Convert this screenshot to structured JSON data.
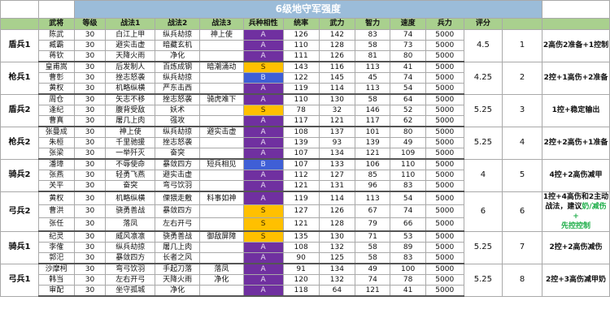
{
  "title": "6级地守军强度",
  "headers": [
    "武将",
    "等级",
    "战法1",
    "战法2",
    "战法3",
    "兵种相性",
    "统率",
    "武力",
    "智力",
    "速度",
    "兵力",
    "评分"
  ],
  "groups": [
    {
      "troop": "盾兵1",
      "score": "4.5",
      "rank": "1",
      "summary": "2高伤2准备+1控制",
      "rows": [
        {
          "name": "陈武",
          "lvl": "30",
          "t1": "白江上甲",
          "t2": "纵兵劫掠",
          "t3": "神上使",
          "aff": "A",
          "cmd": "126",
          "str": "142",
          "int": "83",
          "spd": "74",
          "troops": "5000"
        },
        {
          "name": "臧霸",
          "lvl": "30",
          "t1": "避实击虚",
          "t2": "暗藏玄机",
          "t3": "",
          "aff": "A",
          "cmd": "110",
          "str": "128",
          "int": "58",
          "spd": "73",
          "troops": "5000"
        },
        {
          "name": "蒋钦",
          "lvl": "30",
          "t1": "天降火雨",
          "t2": "净化",
          "t3": "",
          "aff": "A",
          "cmd": "111",
          "str": "126",
          "int": "81",
          "spd": "80",
          "troops": "5000"
        }
      ]
    },
    {
      "troop": "枪兵1",
      "score": "4.25",
      "rank": "2",
      "summary": "2控+1高伤+2准备",
      "rows": [
        {
          "name": "皇甫嵩",
          "lvl": "30",
          "t1": "后发制人",
          "t2": "百炼成钢",
          "t3": "暗潮涌动",
          "aff": "S",
          "cmd": "143",
          "str": "116",
          "int": "113",
          "spd": "41",
          "troops": "5000"
        },
        {
          "name": "曹彰",
          "lvl": "30",
          "t1": "挫志怒袭",
          "t2": "纵兵劫掠",
          "t3": "",
          "aff": "B",
          "cmd": "122",
          "str": "145",
          "int": "45",
          "spd": "74",
          "troops": "5000"
        },
        {
          "name": "黄权",
          "lvl": "30",
          "t1": "机略纵横",
          "t2": "严东击西",
          "t3": "",
          "aff": "A",
          "cmd": "119",
          "str": "114",
          "int": "113",
          "spd": "54",
          "troops": "5000"
        }
      ]
    },
    {
      "troop": "盾兵2",
      "score": "5.25",
      "rank": "3",
      "summary": "1控+稳定输出",
      "rows": [
        {
          "name": "周仓",
          "lvl": "30",
          "t1": "矢志不移",
          "t2": "挫志怒袭",
          "t3": "骑虎难下",
          "aff": "A",
          "cmd": "110",
          "str": "130",
          "int": "58",
          "spd": "64",
          "troops": "5000"
        },
        {
          "name": "逢纪",
          "lvl": "30",
          "t1": "腹背受敌",
          "t2": "妖术",
          "t3": "",
          "aff": "S",
          "cmd": "78",
          "str": "32",
          "int": "146",
          "spd": "52",
          "troops": "5000"
        },
        {
          "name": "曹真",
          "lvl": "30",
          "t1": "屠几上肉",
          "t2": "强攻",
          "t3": "",
          "aff": "A",
          "cmd": "117",
          "str": "121",
          "int": "117",
          "spd": "62",
          "troops": "5000"
        }
      ]
    },
    {
      "troop": "枪兵2",
      "score": "5.25",
      "rank": "4",
      "summary": "2控+2高伤+1准备",
      "rows": [
        {
          "name": "张曼成",
          "lvl": "30",
          "t1": "神上使",
          "t2": "纵兵劫掠",
          "t3": "避实击虚",
          "aff": "A",
          "cmd": "108",
          "str": "137",
          "int": "101",
          "spd": "80",
          "troops": "5000"
        },
        {
          "name": "朱桓",
          "lvl": "30",
          "t1": "千里驰援",
          "t2": "挫志怒袭",
          "t3": "",
          "aff": "A",
          "cmd": "139",
          "str": "93",
          "int": "139",
          "spd": "49",
          "troops": "5000"
        },
        {
          "name": "张梁",
          "lvl": "30",
          "t1": "一举歼灭",
          "t2": "奋突",
          "t3": "",
          "aff": "A",
          "cmd": "107",
          "str": "134",
          "int": "121",
          "spd": "109",
          "troops": "5000"
        }
      ]
    },
    {
      "troop": "骑兵2",
      "score": "4",
      "rank": "5",
      "summary": "4控+2高伤减甲",
      "rows": [
        {
          "name": "潘璋",
          "lvl": "30",
          "t1": "不辱使命",
          "t2": "暴敛四方",
          "t3": "短兵相见",
          "aff": "B",
          "cmd": "107",
          "str": "133",
          "int": "106",
          "spd": "110",
          "troops": "5000"
        },
        {
          "name": "张燕",
          "lvl": "30",
          "t1": "轻勇飞燕",
          "t2": "避实击虚",
          "t3": "",
          "aff": "A",
          "cmd": "112",
          "str": "127",
          "int": "85",
          "spd": "110",
          "troops": "5000"
        },
        {
          "name": "关平",
          "lvl": "30",
          "t1": "奋突",
          "t2": "弯弓饮羽",
          "t3": "",
          "aff": "A",
          "cmd": "121",
          "str": "131",
          "int": "96",
          "spd": "83",
          "troops": "5000"
        }
      ]
    },
    {
      "troop": "弓兵2",
      "score": "6",
      "rank": "6",
      "summary_a": "1控+4高伤和2主动战法，建议",
      "summary_b": "奶/减伤+",
      "summary_c": "先控控制",
      "rows": [
        {
          "name": "黄权",
          "lvl": "30",
          "t1": "机略纵横",
          "t2": "傈猥走敷",
          "t3": "料事如神",
          "aff": "A",
          "cmd": "119",
          "str": "114",
          "int": "113",
          "spd": "54",
          "troops": "5000"
        },
        {
          "name": "曹洪",
          "lvl": "30",
          "t1": "骁勇善战",
          "t2": "暴敛四方",
          "t3": "",
          "aff": "S",
          "cmd": "127",
          "str": "126",
          "int": "67",
          "spd": "74",
          "troops": "5000"
        },
        {
          "name": "张任",
          "lvl": "30",
          "t1": "落凤",
          "t2": "左右开弓",
          "t3": "",
          "aff": "S",
          "cmd": "121",
          "str": "128",
          "int": "79",
          "spd": "66",
          "troops": "5000"
        }
      ]
    },
    {
      "troop": "骑兵1",
      "score": "5.25",
      "rank": "7",
      "summary": "2控+2高伤减伤",
      "rows": [
        {
          "name": "纪灵",
          "lvl": "30",
          "t1": "威风凛凛",
          "t2": "骁勇善战",
          "t3": "御敌屏障",
          "aff": "S",
          "cmd": "135",
          "str": "130",
          "int": "71",
          "spd": "53",
          "troops": "5000"
        },
        {
          "name": "李傕",
          "lvl": "30",
          "t1": "纵兵劫掠",
          "t2": "屠几上肉",
          "t3": "",
          "aff": "A",
          "cmd": "108",
          "str": "132",
          "int": "58",
          "spd": "89",
          "troops": "5000"
        },
        {
          "name": "郭汜",
          "lvl": "30",
          "t1": "暴敛四方",
          "t2": "长者之风",
          "t3": "",
          "aff": "A",
          "cmd": "90",
          "str": "125",
          "int": "58",
          "spd": "83",
          "troops": "5000"
        }
      ]
    },
    {
      "troop": "弓兵1",
      "score": "5.25",
      "rank": "8",
      "summary": "2控+3高伤减甲奶",
      "rows": [
        {
          "name": "沙摩柯",
          "lvl": "30",
          "t1": "弯弓饮羽",
          "t2": "手起刀落",
          "t3": "落凤",
          "aff": "A",
          "cmd": "91",
          "str": "134",
          "int": "49",
          "spd": "100",
          "troops": "5000"
        },
        {
          "name": "韩当",
          "lvl": "30",
          "t1": "左右开弓",
          "t2": "天降火雨",
          "t3": "净化",
          "aff": "A",
          "cmd": "120",
          "str": "132",
          "int": "74",
          "spd": "78",
          "troops": "5000"
        },
        {
          "name": "审配",
          "lvl": "30",
          "t1": "坐守孤城",
          "t2": "净化",
          "t3": "",
          "aff": "A",
          "cmd": "118",
          "str": "64",
          "int": "121",
          "spd": "41",
          "troops": "5000"
        }
      ]
    }
  ]
}
